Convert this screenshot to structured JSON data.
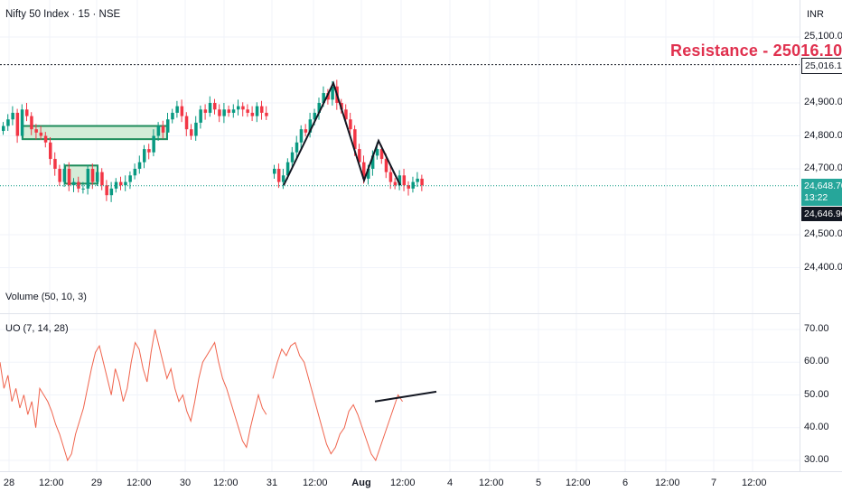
{
  "header": {
    "title": "Nifty 50 Index · 15 · NSE",
    "currency": "INR"
  },
  "annotations": {
    "resistance_label": "Resistance - 25016.10",
    "resistance_price": "25,016.10",
    "last_price": "24,648.70",
    "countdown": "13:22",
    "crosshair_price": "24,646.90"
  },
  "indicators": {
    "volume_label": "Volume (50, 10, 3)",
    "uo_label": "UO (7, 14, 28)"
  },
  "colors": {
    "up": "#089981",
    "down": "#f23645",
    "uo_line": "#f0644d",
    "resistance": "#e0304e",
    "zone_fill": "#d4ecd7",
    "zone_border": "#1e8c5a"
  },
  "chart_data": [
    {
      "type": "candlestick",
      "title": "Nifty 50 Index · 15 · NSE",
      "ylim": [
        24340,
        25160
      ],
      "yticks": [
        {
          "value": 25100,
          "label": "25,100.00"
        },
        {
          "value": 24900,
          "label": "24,900.00"
        },
        {
          "value": 24800,
          "label": "24,800.00"
        },
        {
          "value": 24700,
          "label": "24,700.00"
        },
        {
          "value": 24500,
          "label": "24,500.00"
        },
        {
          "value": 24400,
          "label": "24,400.00"
        }
      ],
      "resistance": 25016.1,
      "last_price": 24648.7,
      "series_close": [
        24830,
        24850,
        24870,
        24800,
        24880,
        24860,
        24820,
        24810,
        24800,
        24780,
        24730,
        24700,
        24660,
        24700,
        24650,
        24660,
        24640,
        24640,
        24700,
        24660,
        24690,
        24650,
        24620,
        24640,
        24660,
        24650,
        24660,
        24680,
        24700,
        24720,
        24760,
        24750,
        24800,
        24830,
        24810,
        24850,
        24870,
        24890,
        24860,
        24820,
        24800,
        24840,
        24880,
        24870,
        24900,
        24880,
        24860,
        24880,
        24870,
        24880,
        24890,
        24880,
        24870,
        24860,
        24890,
        24870,
        24860,
        24700,
        24660,
        24680,
        24720,
        24750,
        24780,
        24820,
        24810,
        24850,
        24870,
        24900,
        24930,
        24910,
        24950,
        24900,
        24880,
        24850,
        24820,
        24760,
        24720,
        24670,
        24700,
        24740,
        24760,
        24730,
        24690,
        24660,
        24650,
        24680,
        24650,
        24640,
        24660,
        24670,
        24650
      ],
      "patterns": {
        "zigzag": [
          24650,
          24960,
          24665,
          24785,
          24650
        ],
        "demand_zones": [
          {
            "top": 24830,
            "bottom": 24790
          },
          {
            "top": 24710,
            "bottom": 24655
          }
        ]
      },
      "x_axis_labels": [
        "28",
        "12:00",
        "29",
        "12:00",
        "30",
        "12:00",
        "31",
        "12:00",
        "Aug",
        "12:00",
        "4",
        "12:00",
        "5",
        "12:00",
        "6",
        "12:00",
        "7",
        "12:00"
      ]
    },
    {
      "type": "line",
      "name": "UO (7, 14, 28)",
      "ylim": [
        27,
        72
      ],
      "yticks": [
        {
          "value": 70,
          "label": "70.00"
        },
        {
          "value": 60,
          "label": "60.00"
        },
        {
          "value": 50,
          "label": "50.00"
        },
        {
          "value": 40,
          "label": "40.00"
        },
        {
          "value": 30,
          "label": "30.00"
        }
      ],
      "values": [
        60,
        52,
        56,
        48,
        52,
        46,
        50,
        44,
        48,
        40,
        52,
        50,
        48,
        45,
        41,
        38,
        34,
        30,
        32,
        38,
        42,
        46,
        52,
        58,
        63,
        65,
        60,
        55,
        50,
        58,
        54,
        48,
        52,
        60,
        66,
        64,
        58,
        54,
        63,
        70,
        65,
        60,
        55,
        58,
        52,
        48,
        50,
        45,
        42,
        48,
        55,
        60,
        62,
        64,
        66,
        60,
        55,
        52,
        48,
        44,
        40,
        36,
        34,
        40,
        45,
        50,
        46,
        44,
        55,
        60,
        64,
        62,
        65,
        66,
        62,
        60,
        55,
        50,
        45,
        40,
        35,
        32,
        34,
        38,
        40,
        45,
        47,
        44,
        40,
        36,
        32,
        30,
        34,
        38,
        42,
        46,
        50,
        48
      ],
      "trendline": [
        48,
        51
      ]
    }
  ]
}
